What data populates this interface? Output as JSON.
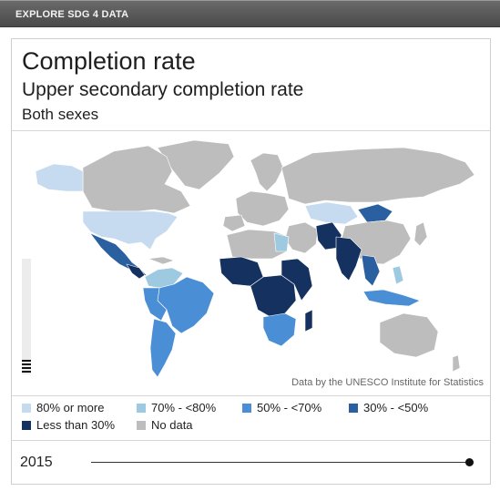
{
  "topbar": {
    "label": "EXPLORE SDG 4 DATA"
  },
  "header": {
    "title": "Completion rate",
    "subtitle": "Upper secondary completion rate",
    "breakdown": "Both sexes"
  },
  "map": {
    "source_text": "Data by the UNESCO Institute for Statistics",
    "colors": {
      "c80": "#c6dbef",
      "c70": "#9ecae1",
      "c50": "#4a8fd6",
      "c30": "#2a5fa0",
      "clt30": "#14315f",
      "none": "#bdbdbd"
    }
  },
  "legend": {
    "items": [
      {
        "label": "80% or more",
        "color": "#c6dbef"
      },
      {
        "label": "70% - <80%",
        "color": "#9ecae1"
      },
      {
        "label": "50% - <70%",
        "color": "#4a8fd6"
      },
      {
        "label": "30% - <50%",
        "color": "#2a5fa0"
      },
      {
        "label": "Less than 30%",
        "color": "#14315f"
      },
      {
        "label": "No data",
        "color": "#bdbdbd"
      }
    ]
  },
  "timeline": {
    "year": "2015"
  }
}
